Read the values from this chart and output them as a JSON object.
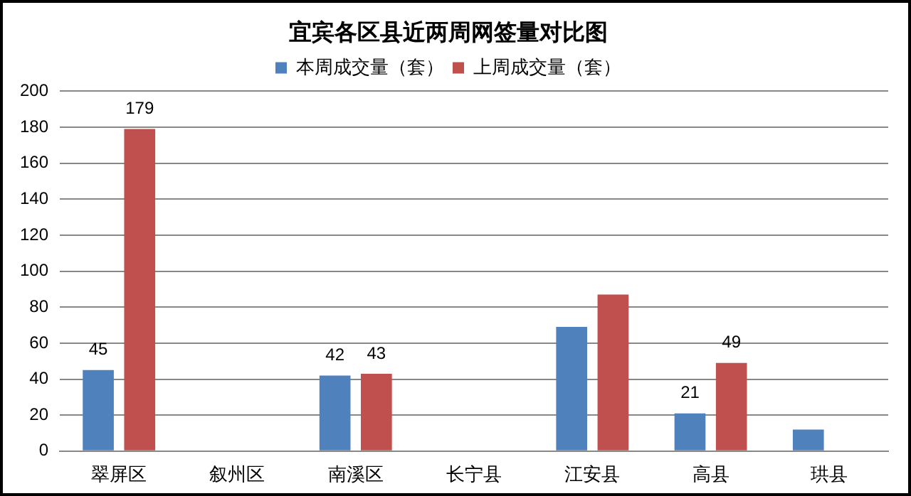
{
  "chart_data": {
    "type": "bar",
    "title": "宜宾各区县近两周网签量对比图",
    "categories": [
      "翠屏区",
      "叙州区",
      "南溪区",
      "长宁县",
      "江安县",
      "高县",
      "珙县"
    ],
    "series": [
      {
        "name": "本周成交量（套）",
        "color": "#4f81bd",
        "values": [
          45,
          null,
          42,
          null,
          69,
          21,
          12
        ],
        "value_labels": [
          "45",
          null,
          "42",
          null,
          null,
          "21",
          null
        ]
      },
      {
        "name": "上周成交量（套）",
        "color": "#c0504d",
        "values": [
          179,
          null,
          43,
          null,
          87,
          49,
          null
        ],
        "value_labels": [
          "179",
          null,
          "43",
          null,
          null,
          "49",
          null
        ]
      }
    ],
    "ylim": [
      0,
      200
    ],
    "yticks": [
      0,
      20,
      40,
      60,
      80,
      100,
      120,
      140,
      160,
      180,
      200
    ],
    "grid": "y",
    "legend": "top"
  }
}
